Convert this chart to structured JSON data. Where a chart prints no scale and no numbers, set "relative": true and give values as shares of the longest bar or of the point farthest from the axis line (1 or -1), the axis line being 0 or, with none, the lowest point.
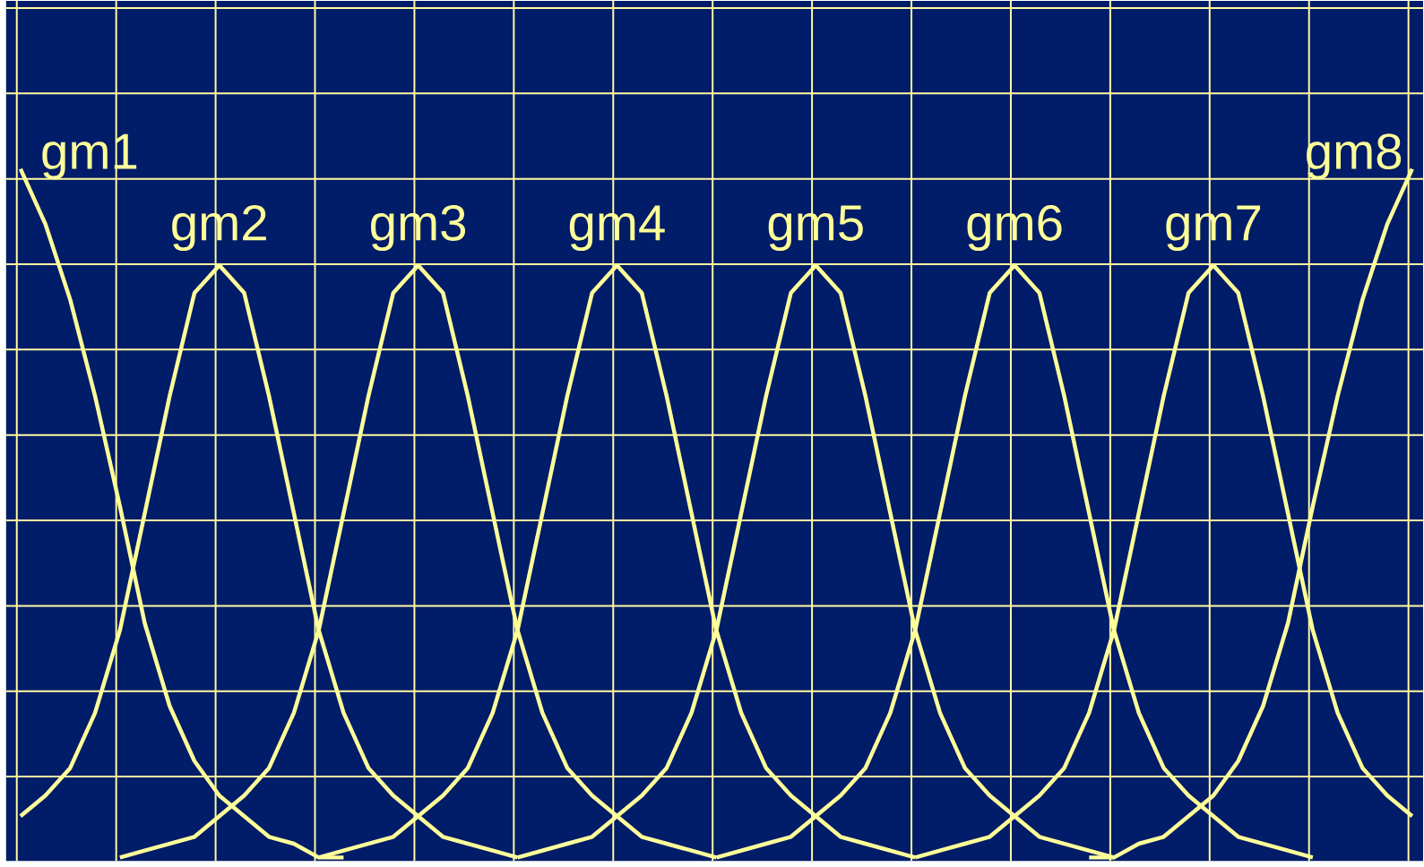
{
  "chart_data": {
    "type": "line",
    "relative": true,
    "grid": true,
    "categories": [
      null,
      null,
      null,
      null,
      null,
      null,
      null,
      null,
      null,
      null,
      null,
      null,
      null,
      null,
      null,
      null,
      null,
      null,
      null,
      null,
      null,
      null,
      null,
      null,
      null,
      null,
      null,
      null,
      null,
      null,
      null,
      null,
      null,
      null,
      null,
      null,
      null,
      null,
      null,
      null,
      null,
      null,
      null,
      null,
      null,
      null,
      null,
      null,
      null,
      null,
      null,
      null,
      null,
      null,
      null,
      null,
      null
    ],
    "series": [
      {
        "name": "gm1",
        "color": "#ffff99",
        "values": [
          1.0,
          0.92,
          0.81,
          0.67,
          0.51,
          0.34,
          0.22,
          0.14,
          0.09,
          0.06,
          0.03,
          0.02,
          0.0,
          0.0,
          null,
          null,
          null,
          null,
          null,
          null,
          null,
          null,
          null,
          null,
          null,
          null,
          null,
          null,
          null,
          null,
          null,
          null,
          null,
          null,
          null,
          null,
          null,
          null,
          null,
          null,
          null,
          null,
          null,
          null,
          null,
          null,
          null,
          null,
          null,
          null,
          null,
          null,
          null,
          null,
          null,
          null,
          null
        ]
      },
      {
        "name": "gm2",
        "color": "#ffff99",
        "values": [
          0.06,
          0.09,
          0.13,
          0.21,
          0.33,
          0.5,
          0.67,
          0.82,
          0.86,
          0.82,
          0.67,
          0.5,
          0.33,
          0.21,
          0.13,
          0.09,
          0.06,
          0.03,
          0.02,
          0.01,
          0.0,
          null,
          null,
          null,
          null,
          null,
          null,
          null,
          null,
          null,
          null,
          null,
          null,
          null,
          null,
          null,
          null,
          null,
          null,
          null,
          null,
          null,
          null,
          null,
          null,
          null,
          null,
          null,
          null,
          null,
          null,
          null,
          null,
          null,
          null,
          null,
          null
        ]
      },
      {
        "name": "gm3",
        "color": "#ffff99",
        "values": [
          null,
          null,
          null,
          null,
          0.0,
          0.01,
          0.02,
          0.03,
          0.06,
          0.09,
          0.13,
          0.21,
          0.33,
          0.5,
          0.67,
          0.82,
          0.86,
          0.82,
          0.67,
          0.5,
          0.33,
          0.21,
          0.13,
          0.09,
          0.06,
          0.03,
          0.02,
          0.01,
          0.0,
          null,
          null,
          null,
          null,
          null,
          null,
          null,
          null,
          null,
          null,
          null,
          null,
          null,
          null,
          null,
          null,
          null,
          null,
          null,
          null,
          null,
          null,
          null,
          null,
          null,
          null,
          null,
          null
        ]
      },
      {
        "name": "gm4",
        "color": "#ffff99",
        "values": [
          null,
          null,
          null,
          null,
          null,
          null,
          null,
          null,
          null,
          null,
          null,
          null,
          0.0,
          0.01,
          0.02,
          0.03,
          0.06,
          0.09,
          0.13,
          0.21,
          0.33,
          0.5,
          0.67,
          0.82,
          0.86,
          0.82,
          0.67,
          0.5,
          0.33,
          0.21,
          0.13,
          0.09,
          0.06,
          0.03,
          0.02,
          0.01,
          0.0,
          null,
          null,
          null,
          null,
          null,
          null,
          null,
          null,
          null,
          null,
          null,
          null,
          null,
          null,
          null,
          null,
          null,
          null,
          null,
          null
        ]
      },
      {
        "name": "gm5",
        "color": "#ffff99",
        "values": [
          null,
          null,
          null,
          null,
          null,
          null,
          null,
          null,
          null,
          null,
          null,
          null,
          null,
          null,
          null,
          null,
          null,
          null,
          null,
          null,
          0.0,
          0.01,
          0.02,
          0.03,
          0.06,
          0.09,
          0.13,
          0.21,
          0.33,
          0.5,
          0.67,
          0.82,
          0.86,
          0.82,
          0.67,
          0.5,
          0.33,
          0.21,
          0.13,
          0.09,
          0.06,
          0.03,
          0.02,
          0.01,
          0.0,
          null,
          null,
          null,
          null,
          null,
          null,
          null,
          null,
          null,
          null,
          null,
          null
        ]
      },
      {
        "name": "gm6",
        "color": "#ffff99",
        "values": [
          null,
          null,
          null,
          null,
          null,
          null,
          null,
          null,
          null,
          null,
          null,
          null,
          null,
          null,
          null,
          null,
          null,
          null,
          null,
          null,
          null,
          null,
          null,
          null,
          null,
          null,
          null,
          null,
          0.0,
          0.01,
          0.02,
          0.03,
          0.06,
          0.09,
          0.13,
          0.21,
          0.33,
          0.5,
          0.67,
          0.82,
          0.86,
          0.82,
          0.67,
          0.5,
          0.33,
          0.21,
          0.13,
          0.09,
          0.06,
          0.03,
          0.02,
          0.01,
          0.0,
          null,
          null,
          null,
          null
        ]
      },
      {
        "name": "gm7",
        "color": "#ffff99",
        "values": [
          null,
          null,
          null,
          null,
          null,
          null,
          null,
          null,
          null,
          null,
          null,
          null,
          null,
          null,
          null,
          null,
          null,
          null,
          null,
          null,
          null,
          null,
          null,
          null,
          null,
          null,
          null,
          null,
          null,
          null,
          null,
          null,
          null,
          null,
          null,
          null,
          0.0,
          0.01,
          0.02,
          0.03,
          0.06,
          0.09,
          0.13,
          0.21,
          0.33,
          0.5,
          0.67,
          0.82,
          0.86,
          0.82,
          0.67,
          0.5,
          0.33,
          0.21,
          0.13,
          0.09,
          0.06
        ]
      },
      {
        "name": "gm8",
        "color": "#ffff99",
        "values": [
          null,
          null,
          null,
          null,
          null,
          null,
          null,
          null,
          null,
          null,
          null,
          null,
          null,
          null,
          null,
          null,
          null,
          null,
          null,
          null,
          null,
          null,
          null,
          null,
          null,
          null,
          null,
          null,
          null,
          null,
          null,
          null,
          null,
          null,
          null,
          null,
          null,
          null,
          null,
          null,
          null,
          null,
          null,
          0.0,
          0.0,
          0.02,
          0.03,
          0.06,
          0.09,
          0.14,
          0.22,
          0.34,
          0.51,
          0.67,
          0.81,
          0.92,
          1.0
        ]
      }
    ]
  }
}
